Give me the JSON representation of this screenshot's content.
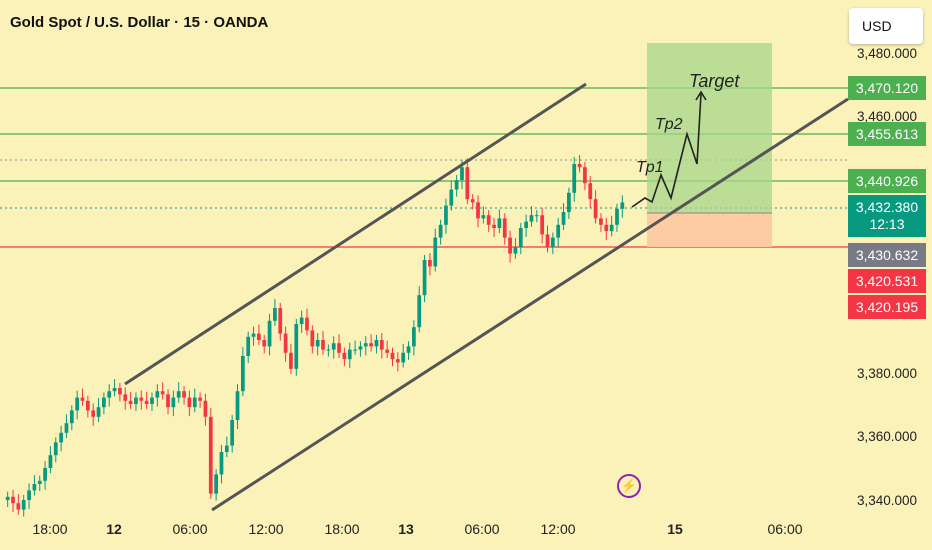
{
  "window": {
    "title": "Gold Spot / U.S. Dollar · 15 · OANDA",
    "currency_button": "USD"
  },
  "price_tags": [
    {
      "label": "3,470.120",
      "color": "#4caf50",
      "value": 3470.12
    },
    {
      "label": "3,455.613",
      "color": "#4caf50",
      "value": 3455.613
    },
    {
      "label": "3,440.926",
      "color": "#4caf50",
      "value": 3440.926
    },
    {
      "label": "3,430.632",
      "color": "#787b86",
      "value": 3430.632
    },
    {
      "label": "3,420.531",
      "color": "#f23645",
      "value": 3420.531
    },
    {
      "label": "3,420.195",
      "color": "#f23645",
      "value": 3420.195
    }
  ],
  "current_price": {
    "label": "3,432.380",
    "countdown": "12:13",
    "color": "#089981",
    "value": 3432.38
  },
  "icons": {
    "event": "lightning-bolt-icon"
  },
  "chart_data": {
    "type": "line",
    "title": "Gold Spot / U.S. Dollar · 15 · OANDA",
    "y_axis": {
      "ticks": [
        "3,480.000",
        "3,460.000",
        "3,380.000",
        "3,360.000",
        "3,340.000"
      ],
      "range": [
        3338,
        3483
      ],
      "side": "right"
    },
    "x_axis": {
      "ticks": [
        "18:00",
        "12",
        "06:00",
        "12:00",
        "18:00",
        "13",
        "06:00",
        "12:00",
        "15",
        "06:00"
      ],
      "bold_ticks": [
        "12",
        "13",
        "15"
      ]
    },
    "horizontal_levels": [
      {
        "price": 3470.12,
        "color": "#4caf50",
        "style": "solid"
      },
      {
        "price": 3455.613,
        "color": "#4caf50",
        "style": "solid"
      },
      {
        "price": 3448.5,
        "color": "#8a8a8a",
        "style": "dotted"
      },
      {
        "price": 3440.926,
        "color": "#4caf50",
        "style": "solid"
      },
      {
        "price": 3432.38,
        "color": "#089981",
        "style": "dotted"
      },
      {
        "price": 3420.531,
        "color": "#f23645",
        "style": "solid"
      }
    ],
    "channel_upper": {
      "from": [
        "11 18:00",
        3376
      ],
      "to": [
        "13 12:00",
        3471
      ]
    },
    "channel_lower": {
      "from": [
        "12 06:00",
        3338
      ],
      "to": [
        "15 04:00",
        3464
      ]
    },
    "position": {
      "entry": 3431.2,
      "target": 3482.5,
      "stop": 3420.531,
      "profit_color": "#a5d68a",
      "loss_color": "#fdc9a3"
    },
    "annotations": [
      "Tp1",
      "Tp2",
      "Target"
    ],
    "candle_colors": {
      "up": "#089981",
      "down": "#f23645"
    },
    "price_path": [
      3341,
      3339,
      3337,
      3340,
      3343,
      3345,
      3346,
      3350,
      3354,
      3358,
      3361,
      3364,
      3368,
      3372,
      3371,
      3368,
      3366,
      3369,
      3372,
      3374,
      3375,
      3373,
      3371,
      3370,
      3372,
      3371,
      3370,
      3372,
      3374,
      3373,
      3369,
      3372,
      3374,
      3372,
      3369,
      3372,
      3371,
      3366,
      3342,
      3348,
      3355,
      3357,
      3365,
      3374,
      3385,
      3391,
      3392,
      3390,
      3388,
      3396,
      3400,
      3392,
      3386,
      3381,
      3395,
      3397,
      3393,
      3388,
      3390,
      3387,
      3387,
      3389,
      3386,
      3384,
      3387,
      3387,
      3388,
      3389,
      3388,
      3390,
      3387,
      3386,
      3384,
      3383,
      3386,
      3388,
      3394,
      3404,
      3415,
      3413,
      3422,
      3426,
      3432,
      3437,
      3440,
      3444,
      3434,
      3433,
      3428,
      3429,
      3426,
      3425,
      3428,
      3422,
      3417,
      3419,
      3425,
      3427,
      3429,
      3429,
      3423,
      3419,
      3422,
      3426,
      3430,
      3436,
      3445,
      3444,
      3439,
      3434,
      3428,
      3426,
      3424,
      3426,
      3431,
      3433
    ]
  }
}
